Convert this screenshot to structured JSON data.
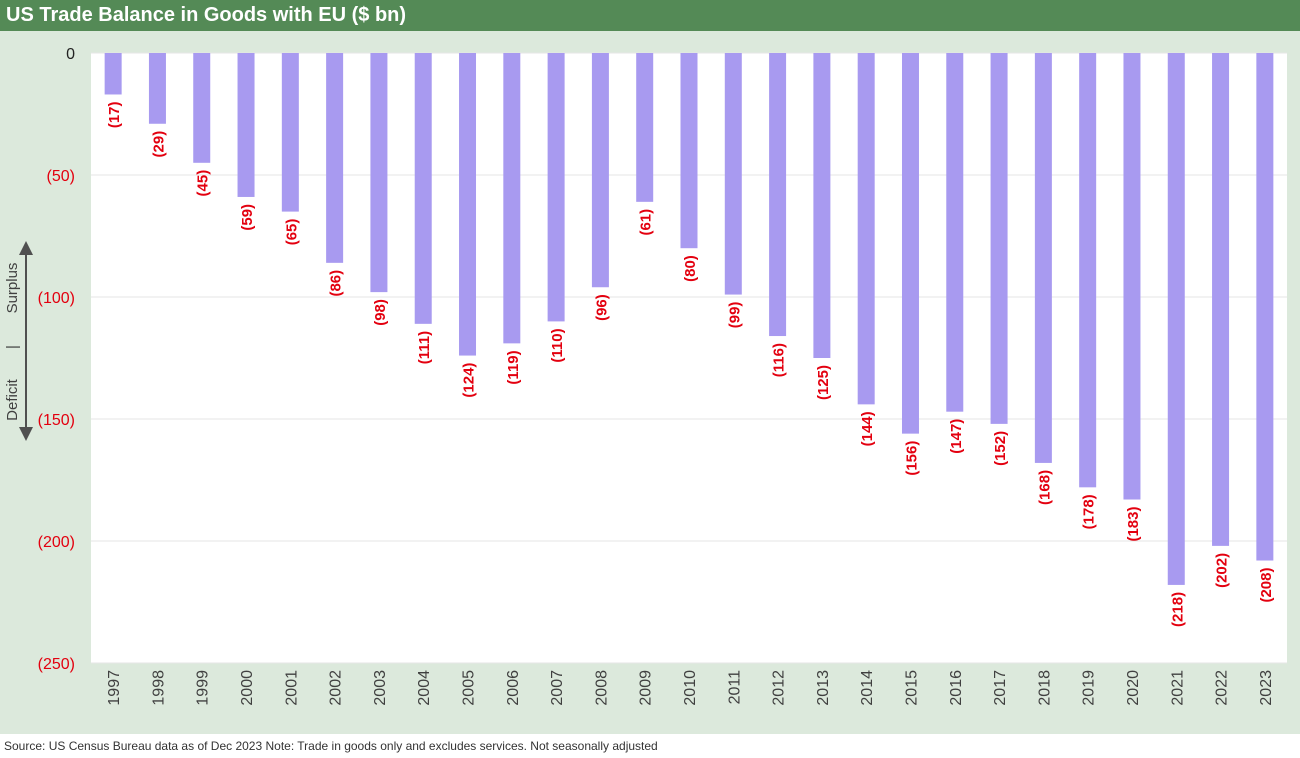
{
  "title": "US Trade Balance in Goods with EU ($ bn)",
  "source_note": "Source: US Census Bureau data as of Dec 2023 Note: Trade in goods only and excludes services. Not seasonally adjusted",
  "side_label": {
    "top": "Surplus",
    "divider": "|",
    "bottom": "Deficit"
  },
  "colors": {
    "title_bg": "#548a56",
    "panel_bg": "#dce9dc",
    "bar": "#a89af0",
    "negative_label": "#e3000f",
    "axis_text": "#404040"
  },
  "chart_data": {
    "type": "bar",
    "title": "US Trade Balance in Goods with EU ($ bn)",
    "xlabel": "",
    "ylabel": "",
    "ylim": [
      -250,
      0
    ],
    "yticks": [
      0,
      -50,
      -100,
      -150,
      -200,
      -250
    ],
    "ytick_labels": [
      "0",
      "(50)",
      "(100)",
      "(150)",
      "(200)",
      "(250)"
    ],
    "grid": true,
    "categories": [
      "1997",
      "1998",
      "1999",
      "2000",
      "2001",
      "2002",
      "2003",
      "2004",
      "2005",
      "2006",
      "2007",
      "2008",
      "2009",
      "2010",
      "2011",
      "2012",
      "2013",
      "2014",
      "2015",
      "2016",
      "2017",
      "2018",
      "2019",
      "2020",
      "2021",
      "2022",
      "2023"
    ],
    "values": [
      -17,
      -29,
      -45,
      -59,
      -65,
      -86,
      -98,
      -111,
      -124,
      -119,
      -110,
      -96,
      -61,
      -80,
      -99,
      -116,
      -125,
      -144,
      -156,
      -147,
      -152,
      -168,
      -178,
      -183,
      -218,
      -202,
      -208
    ],
    "data_labels": [
      "(17)",
      "(29)",
      "(45)",
      "(59)",
      "(65)",
      "(86)",
      "(98)",
      "(111)",
      "(124)",
      "(119)",
      "(110)",
      "(96)",
      "(61)",
      "(80)",
      "(99)",
      "(116)",
      "(125)",
      "(144)",
      "(156)",
      "(147)",
      "(152)",
      "(168)",
      "(178)",
      "(183)",
      "(218)",
      "(202)",
      "(208)"
    ]
  }
}
